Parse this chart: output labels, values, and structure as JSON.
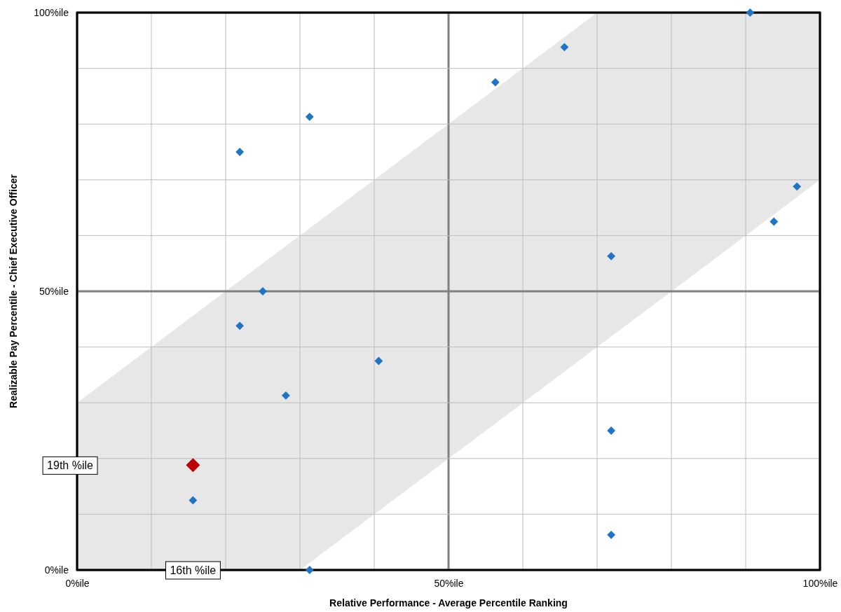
{
  "chart_data": {
    "type": "scatter",
    "xlabel": "Relative Performance - Average Percentile Ranking",
    "ylabel": "Realizable Pay Percentile - Chief Executive Officer",
    "xlim": [
      0,
      100
    ],
    "ylim": [
      0,
      100
    ],
    "xticks": [
      {
        "value": 0,
        "label": "0%ile"
      },
      {
        "value": 10,
        "label": null
      },
      {
        "value": 20,
        "label": null
      },
      {
        "value": 30,
        "label": null
      },
      {
        "value": 40,
        "label": null
      },
      {
        "value": 50,
        "label": "50%ile"
      },
      {
        "value": 60,
        "label": null
      },
      {
        "value": 70,
        "label": null
      },
      {
        "value": 80,
        "label": null
      },
      {
        "value": 90,
        "label": null
      },
      {
        "value": 100,
        "label": "100%ile"
      }
    ],
    "yticks": [
      {
        "value": 0,
        "label": "0%ile"
      },
      {
        "value": 10,
        "label": null
      },
      {
        "value": 20,
        "label": null
      },
      {
        "value": 30,
        "label": null
      },
      {
        "value": 40,
        "label": null
      },
      {
        "value": 50,
        "label": "50%ile"
      },
      {
        "value": 60,
        "label": null
      },
      {
        "value": 70,
        "label": null
      },
      {
        "value": 80,
        "label": null
      },
      {
        "value": 90,
        "label": null
      },
      {
        "value": 100,
        "label": "100%ile"
      }
    ],
    "grid": true,
    "series": [
      {
        "type": "area",
        "color": "#e7e7e7",
        "x": [
          0,
          70,
          100
        ],
        "values": [
          30,
          100,
          100
        ]
      },
      {
        "type": "area",
        "color": "#ffffff",
        "x": [
          30,
          100
        ],
        "values": [
          0,
          70
        ]
      },
      {
        "marker": "diamond",
        "color": "#1f74c6",
        "x": [
          90.6,
          65.6,
          56.3,
          31.3,
          21.9,
          96.9,
          93.8,
          71.9,
          25,
          21.9,
          40.6,
          28.1,
          71.9,
          15.6,
          71.9,
          31.3
        ],
        "values": [
          100,
          93.8,
          87.5,
          81.3,
          75,
          68.8,
          62.5,
          56.3,
          50,
          43.8,
          37.5,
          31.3,
          25,
          12.5,
          6.3,
          0
        ]
      },
      {
        "marker": "diamond",
        "color": "#c00000",
        "x": [
          15.6
        ],
        "values": [
          18.8
        ]
      }
    ],
    "annotations": [
      {
        "text": "19th %ile",
        "x": 0,
        "y": 18.8
      },
      {
        "text": "16th %ile",
        "x": 15.6,
        "y": 0
      }
    ]
  }
}
